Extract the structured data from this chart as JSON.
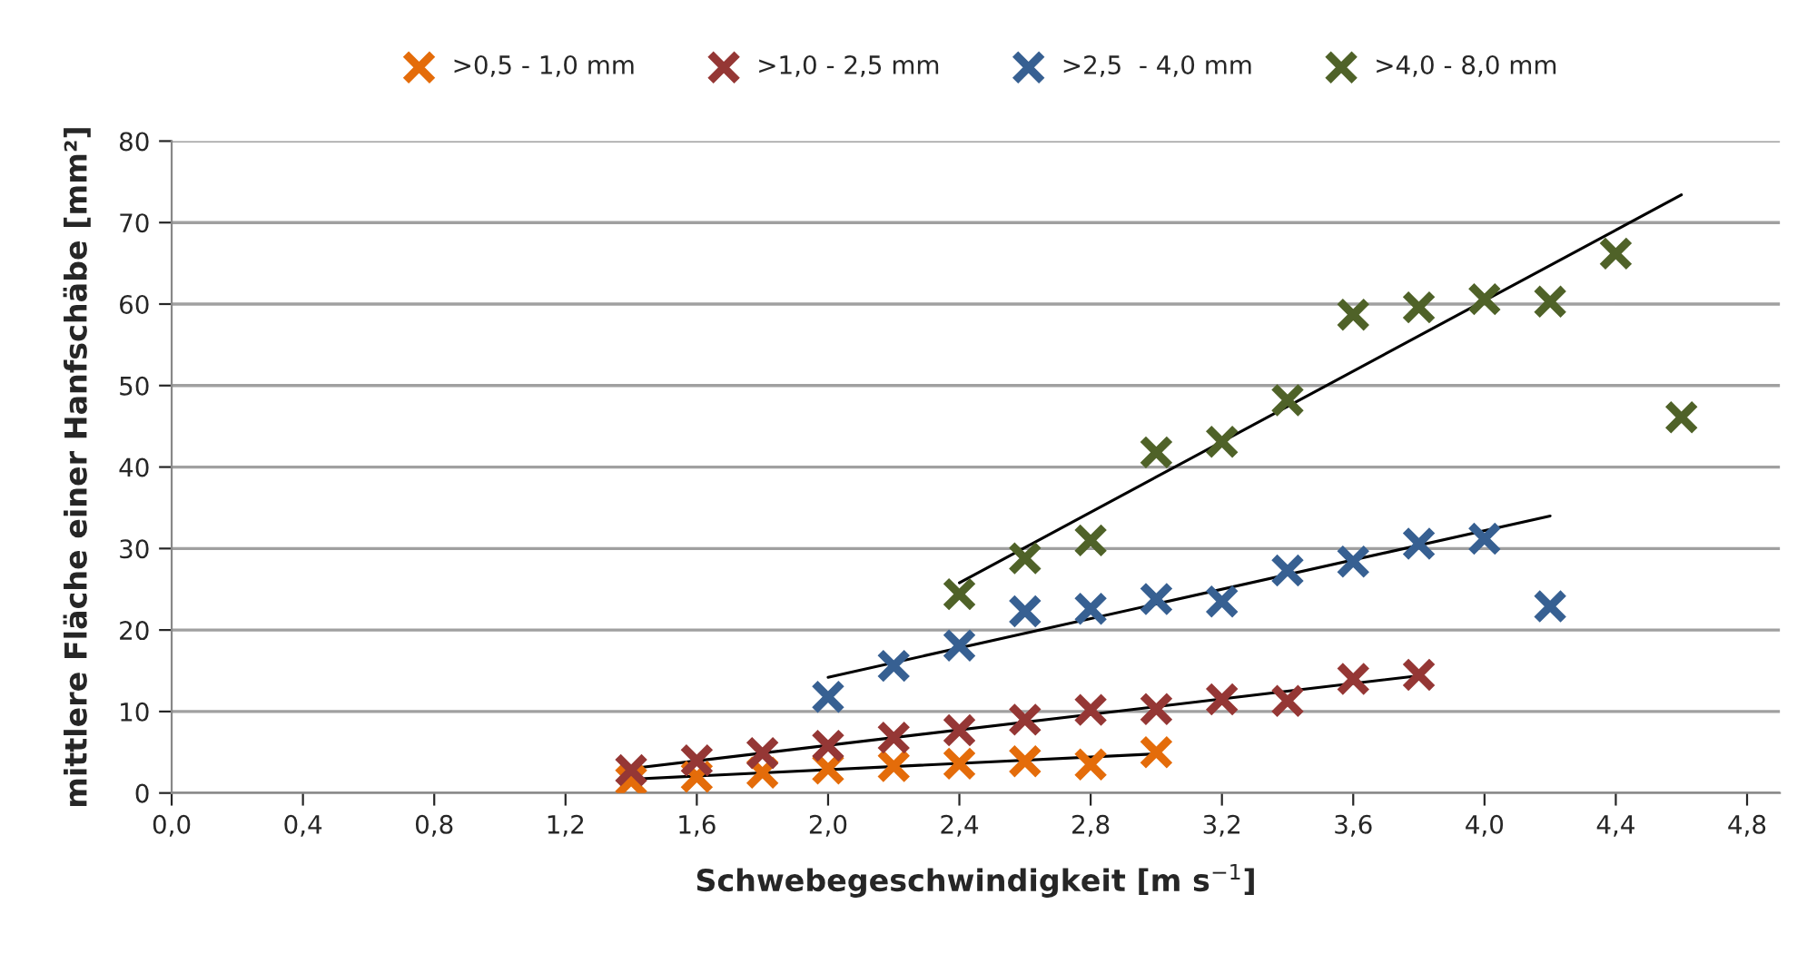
{
  "chart_data": {
    "type": "scatter",
    "xlabel": "Schwebegeschwindigkeit [m s$^{−1}$]",
    "ylabel": "mittlere Fläche einer Hanfschäbe [mm²]",
    "xlim": [
      0,
      4.9
    ],
    "ylim": [
      0,
      80
    ],
    "xticks": [
      {
        "value": 0,
        "label": "0,0"
      },
      {
        "value": 0.4,
        "label": "0,4"
      },
      {
        "value": 0.8,
        "label": "0,8"
      },
      {
        "value": 1.2,
        "label": "1,2"
      },
      {
        "value": 1.6,
        "label": "1,6"
      },
      {
        "value": 2.0,
        "label": "2,0"
      },
      {
        "value": 2.4,
        "label": "2,4"
      },
      {
        "value": 2.8,
        "label": "2,8"
      },
      {
        "value": 3.2,
        "label": "3,2"
      },
      {
        "value": 3.6,
        "label": "3,6"
      },
      {
        "value": 4.0,
        "label": "4,0"
      },
      {
        "value": 4.4,
        "label": "4,4"
      },
      {
        "value": 4.8,
        "label": "4,8"
      }
    ],
    "yticks": [
      0,
      10,
      20,
      30,
      40,
      50,
      60,
      70,
      80
    ],
    "grid": "y",
    "legend": "top",
    "marker": "cross",
    "series": [
      {
        "name": ">0,5 - 1,0 mm",
        "color": "#e46c0a",
        "x": [
          1.4,
          1.6,
          1.8,
          2.0,
          2.2,
          2.4,
          2.6,
          2.8,
          3.0
        ],
        "values": [
          1.5,
          2.0,
          2.5,
          3.0,
          3.3,
          3.6,
          3.9,
          3.5,
          5.0
        ]
      },
      {
        "name": ">1,0 - 2,5 mm",
        "color": "#953735",
        "x": [
          1.4,
          1.6,
          1.8,
          2.0,
          2.2,
          2.4,
          2.6,
          2.8,
          3.0,
          3.2,
          3.4,
          3.6,
          3.8
        ],
        "values": [
          2.8,
          4.0,
          4.9,
          5.8,
          6.8,
          7.7,
          9.0,
          10.2,
          10.3,
          11.5,
          11.3,
          14.0,
          14.5
        ]
      },
      {
        "name": ">2,5  - 4,0 mm",
        "color": "#376092",
        "x": [
          2.0,
          2.2,
          2.4,
          2.6,
          2.8,
          3.0,
          3.2,
          3.4,
          3.6,
          3.8,
          4.0,
          4.2
        ],
        "values": [
          11.8,
          15.6,
          18.1,
          22.3,
          22.6,
          23.8,
          23.5,
          27.3,
          28.4,
          30.6,
          31.2,
          22.9
        ]
      },
      {
        "name": ">4,0 - 8,0 mm",
        "color": "#4f6228",
        "x": [
          2.4,
          2.6,
          2.8,
          3.0,
          3.2,
          3.4,
          3.6,
          3.8,
          4.0,
          4.2,
          4.4,
          4.6
        ],
        "values": [
          24.4,
          28.8,
          31.0,
          41.8,
          43.1,
          48.2,
          58.7,
          59.6,
          60.6,
          60.3,
          66.2,
          46.1
        ]
      },
      {
        "type": "line",
        "marker": "none",
        "color": "#000000",
        "x": [
          1.4,
          3.0
        ],
        "values": [
          1.7,
          4.8
        ]
      },
      {
        "type": "line",
        "marker": "none",
        "color": "#000000",
        "x": [
          1.4,
          3.8
        ],
        "values": [
          3.0,
          14.4
        ]
      },
      {
        "type": "line",
        "marker": "none",
        "color": "#000000",
        "x": [
          2.0,
          4.2
        ],
        "values": [
          14.2,
          34.0
        ]
      },
      {
        "type": "line",
        "marker": "none",
        "color": "#000000",
        "x": [
          2.4,
          4.6
        ],
        "values": [
          25.8,
          73.4
        ]
      }
    ]
  }
}
